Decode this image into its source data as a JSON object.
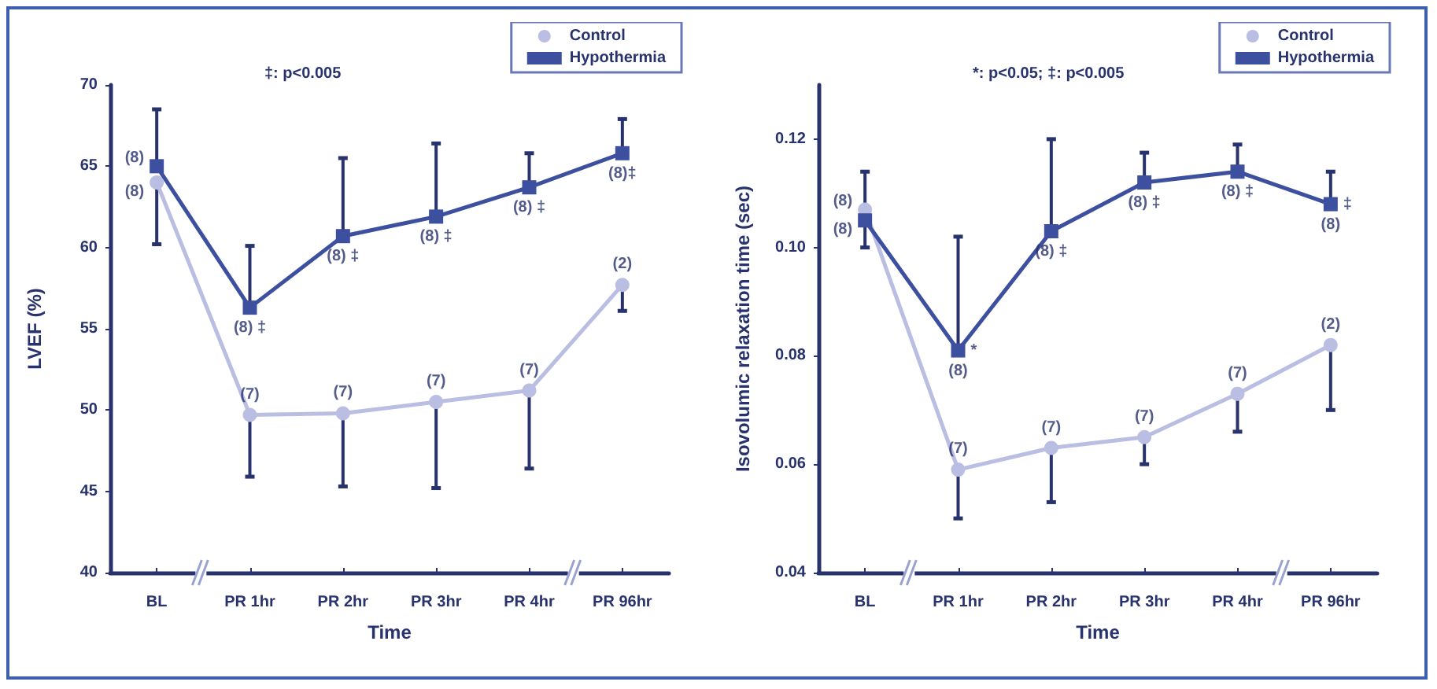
{
  "chart_data": [
    {
      "type": "line",
      "ylabel": "LVEF (%)",
      "xlabel": "Time",
      "categories": [
        "BL",
        "PR 1hr",
        "PR 2hr",
        "PR 3hr",
        "PR 4hr",
        "PR 96hr"
      ],
      "ylim": [
        40,
        70
      ],
      "yticks": [
        40,
        45,
        50,
        55,
        60,
        65,
        70
      ],
      "grid": false,
      "legend": "top right",
      "line_style": "solid",
      "series": [
        {
          "name": "Control",
          "color": "#b9bee2",
          "marker": "circle",
          "values": [
            64,
            49.7,
            49.8,
            50.5,
            51.2,
            57.7
          ],
          "errors": [
            [
              60.2,
              64
            ],
            [
              45.9,
              49.7
            ],
            [
              45.3,
              49.8
            ],
            [
              45.2,
              50.5
            ],
            [
              46.4,
              51.2
            ],
            [
              56.1,
              57.7
            ]
          ]
        },
        {
          "name": "Hypothermia",
          "color": "#3d4f9f",
          "marker": "square",
          "values": [
            65,
            56.3,
            60.7,
            61.9,
            63.7,
            65.8
          ],
          "errors": [
            [
              65,
              68.5
            ],
            [
              56.3,
              60.1
            ],
            [
              60.7,
              65.5
            ],
            [
              61.9,
              66.4
            ],
            [
              63.7,
              65.8
            ],
            [
              65.8,
              67.9
            ]
          ]
        }
      ],
      "annotations": [
        "‡: p<0.005",
        {
          "text": "(8)",
          "x": "BL",
          "y": 65
        },
        {
          "text": "(8)",
          "x": "BL",
          "y": 64
        },
        {
          "text": "(8) ‡",
          "x": "PR 1hr",
          "y": 56.3
        },
        {
          "text": "(8) ‡",
          "x": "PR 2hr",
          "y": 60.7
        },
        {
          "text": "(8) ‡",
          "x": "PR 3hr",
          "y": 61.9
        },
        {
          "text": "(8) ‡",
          "x": "PR 4hr",
          "y": 63.7
        },
        {
          "text": "(8)‡",
          "x": "PR 96hr",
          "y": 65.8
        },
        {
          "text": "(7)",
          "x": "PR 1hr",
          "y": 49.7
        },
        {
          "text": "(7)",
          "x": "PR 2hr",
          "y": 49.8
        },
        {
          "text": "(7)",
          "x": "PR 3hr",
          "y": 50.5
        },
        {
          "text": "(7)",
          "x": "PR 4hr",
          "y": 51.2
        },
        {
          "text": "(2)",
          "x": "PR 96hr",
          "y": 57.7
        }
      ]
    },
    {
      "type": "line",
      "ylabel": "Isovolumic relaxation time (sec)",
      "xlabel": "Time",
      "categories": [
        "BL",
        "PR 1hr",
        "PR 2hr",
        "PR 3hr",
        "PR 4hr",
        "PR 96hr"
      ],
      "ylim": [
        0.04,
        0.13
      ],
      "yticks": [
        {
          "value": 0.04,
          "label": "0.04"
        },
        {
          "value": 0.06,
          "label": "0.06"
        },
        {
          "value": 0.08,
          "label": "0.08"
        },
        {
          "value": 0.1,
          "label": "0.10"
        },
        {
          "value": 0.12,
          "label": "0.12"
        }
      ],
      "grid": false,
      "legend": "top right",
      "line_style": "solid",
      "series": [
        {
          "name": "Control",
          "color": "#b9bee2",
          "marker": "circle",
          "values": [
            0.107,
            0.059,
            0.063,
            0.065,
            0.073,
            0.082
          ],
          "errors": [
            [
              0.1,
              0.107
            ],
            [
              0.05,
              0.059
            ],
            [
              0.053,
              0.063
            ],
            [
              0.06,
              0.065
            ],
            [
              0.066,
              0.073
            ],
            [
              0.07,
              0.082
            ]
          ]
        },
        {
          "name": "Hypothermia",
          "color": "#3d4f9f",
          "marker": "square",
          "values": [
            0.105,
            0.081,
            0.103,
            0.112,
            0.114,
            0.108
          ],
          "errors": [
            [
              0.105,
              0.114
            ],
            [
              0.081,
              0.102
            ],
            [
              0.103,
              0.12
            ],
            [
              0.112,
              0.1175
            ],
            [
              0.114,
              0.119
            ],
            [
              0.108,
              0.114
            ]
          ]
        }
      ],
      "annotations": [
        "*: p<0.05; ‡: p<0.005",
        {
          "text": "(8)",
          "x": "BL",
          "y": 0.107
        },
        {
          "text": "(8)",
          "x": "BL",
          "y": 0.105
        },
        {
          "text": "*",
          "x": "PR 1hr",
          "y": 0.081
        },
        {
          "text": "(8)",
          "x": "PR 1hr",
          "y": 0.081
        },
        {
          "text": "(8) ‡",
          "x": "PR 2hr",
          "y": 0.103
        },
        {
          "text": "(8) ‡",
          "x": "PR 3hr",
          "y": 0.112
        },
        {
          "text": "(8) ‡",
          "x": "PR 4hr",
          "y": 0.114
        },
        {
          "text": "(8)",
          "x": "PR 96hr",
          "y": 0.108
        },
        {
          "text": "‡",
          "x": "PR 96hr",
          "y": 0.108
        },
        {
          "text": "(7)",
          "x": "PR 1hr",
          "y": 0.059
        },
        {
          "text": "(7)",
          "x": "PR 2hr",
          "y": 0.063
        },
        {
          "text": "(7)",
          "x": "PR 3hr",
          "y": 0.065
        },
        {
          "text": "(7)",
          "x": "PR 4hr",
          "y": 0.073
        },
        {
          "text": "(2)",
          "x": "PR 96hr",
          "y": 0.082
        }
      ]
    }
  ]
}
